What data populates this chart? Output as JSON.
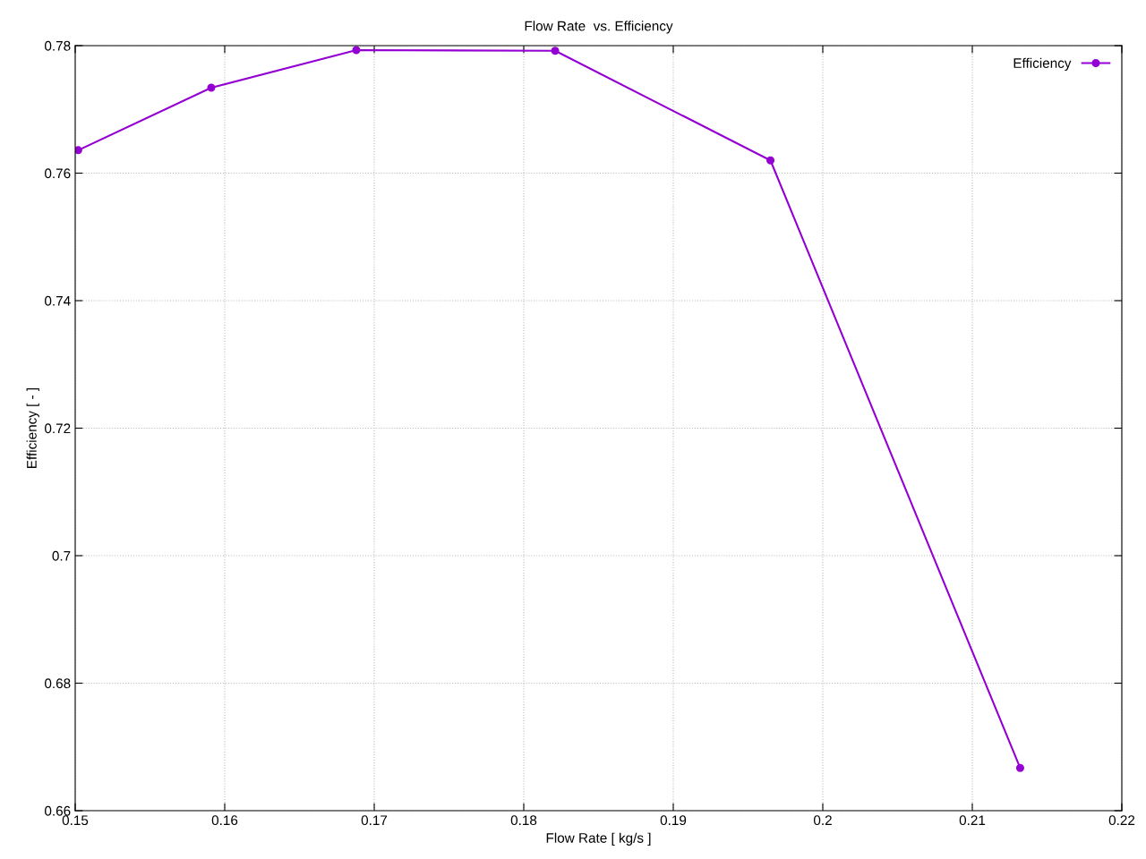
{
  "chart_data": {
    "type": "line",
    "title": "Flow Rate  vs. Efficiency",
    "xlabel": "Flow Rate [ kg/s ]",
    "ylabel": "Efficiency [ - ]",
    "x": [
      0.1502,
      0.1591,
      0.1688,
      0.1821,
      0.1965,
      0.2132
    ],
    "series": [
      {
        "name": "Efficiency",
        "color": "#9400d3",
        "values": [
          0.7636,
          0.7734,
          0.7793,
          0.7792,
          0.762,
          0.6667
        ]
      }
    ],
    "xlim": [
      0.15,
      0.22
    ],
    "xticks": [
      0.15,
      0.16,
      0.17,
      0.18,
      0.19,
      0.2,
      0.21,
      0.22
    ],
    "ylim": [
      0.66,
      0.78
    ],
    "yticks": [
      0.66,
      0.68,
      0.7,
      0.72,
      0.74,
      0.76,
      0.78
    ],
    "grid": true,
    "legend": "top right",
    "marker": "circle",
    "line_style": "solid"
  }
}
